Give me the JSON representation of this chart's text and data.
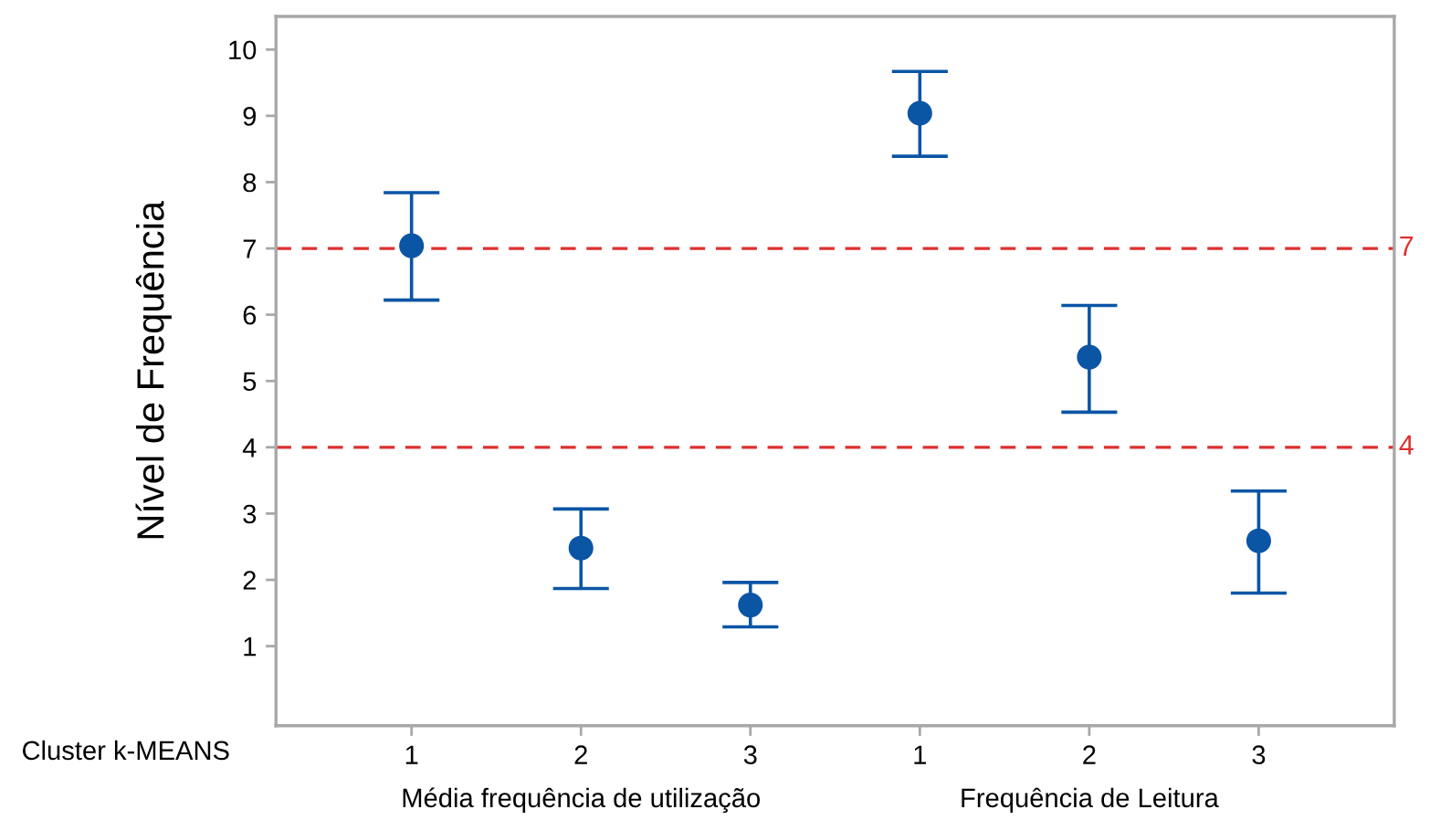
{
  "chart_data": {
    "type": "scatter",
    "ylabel": "Nível de Frequência",
    "categories": [
      "1",
      "2",
      "3",
      "1",
      "2",
      "3"
    ],
    "series": [
      {
        "color": "#0b55a5",
        "values": [
          7.04,
          2.48,
          1.62,
          9.04,
          5.36,
          2.59
        ],
        "errors": [
          [
            6.22,
            7.84
          ],
          [
            1.87,
            3.07
          ],
          [
            1.29,
            1.96
          ],
          [
            8.39,
            9.67
          ],
          [
            4.53,
            6.14
          ],
          [
            1.8,
            3.34
          ]
        ]
      }
    ],
    "ylim": [
      -0.2,
      10.5
    ],
    "yticks": [
      1,
      2,
      3,
      4,
      5,
      6,
      7,
      8,
      9,
      10
    ],
    "marker": "circle",
    "ref_lines": [
      {
        "axis": "y",
        "value": 7,
        "label": "7",
        "color": "#dd3030",
        "line_style": "dashed"
      },
      {
        "axis": "y",
        "value": 4,
        "label": "4",
        "color": "#dd3030",
        "line_style": "dashed"
      }
    ],
    "annotations": [
      "Cluster k-MEANS",
      "Média frequência de utilização",
      "Frequência de Leitura"
    ]
  }
}
